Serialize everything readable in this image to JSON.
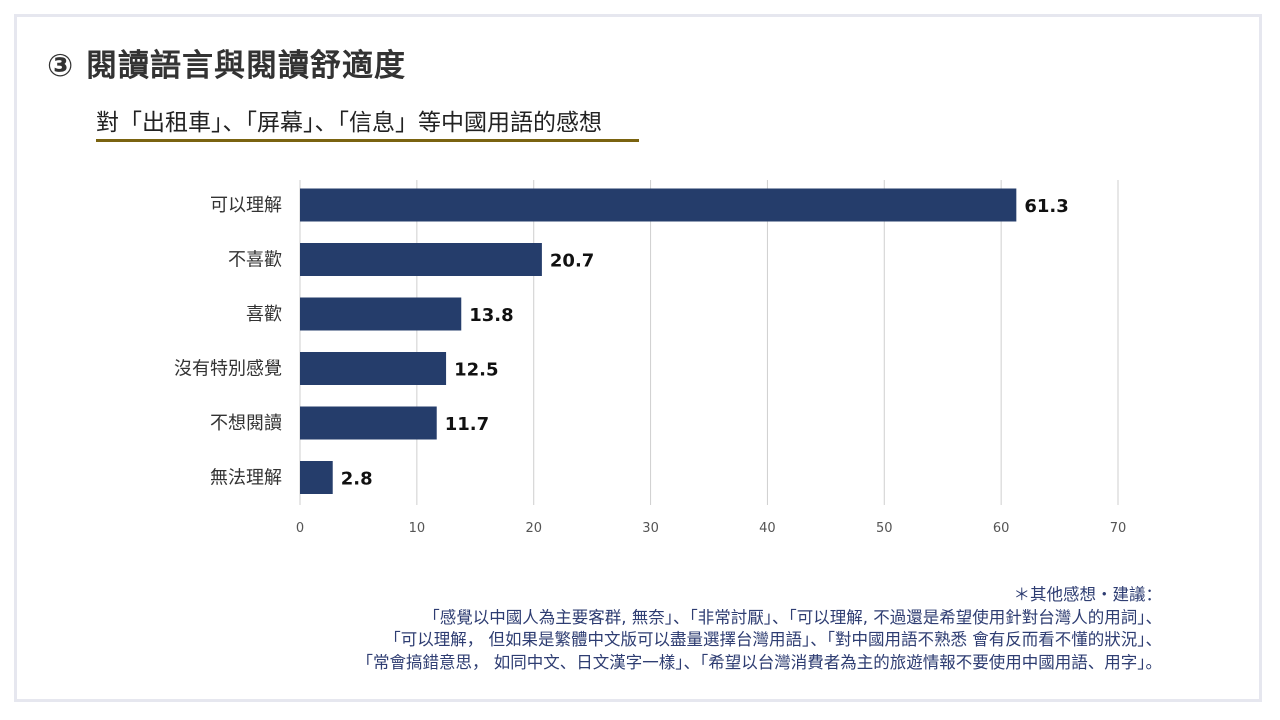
{
  "header": {
    "title": "③ 閱讀語言與閱讀舒適度",
    "subtitle": "對「出租車」、「屏幕」、「信息」等中國用語的感想"
  },
  "chart_data": {
    "type": "bar",
    "orientation": "horizontal",
    "categories": [
      "可以理解",
      "不喜歡",
      "喜歡",
      "沒有特別感覺",
      "不想閱讀",
      "無法理解"
    ],
    "values": [
      61.3,
      20.7,
      13.8,
      12.5,
      11.7,
      2.8
    ],
    "value_labels": [
      "61.3",
      "20.7",
      "13.8",
      "12.5",
      "11.7",
      "2.8"
    ],
    "xlim": [
      0,
      70
    ],
    "x_ticks": [
      0,
      10,
      20,
      30,
      40,
      50,
      60,
      70
    ],
    "grid": true,
    "bar_color": "#253d6b",
    "grid_color": "#cfcfcf"
  },
  "notes": {
    "heading": "＊其他感想・建議：",
    "lines": [
      "「感覺以中國人為主要客群, 無奈」、「非常討厭」、「可以理解, 不過還是希望使用針對台灣人的用詞」、",
      "「可以理解， 但如果是繁體中文版可以盡量選擇台灣用語」、「對中國用語不熟悉 會有反而看不懂的狀況」、",
      "「常會搞錯意思， 如同中文、日文漢字一樣」、「希望以台灣消費者為主的旅遊情報不要使用中國用語、用字」。"
    ]
  },
  "colors": {
    "title_text": "#333333",
    "subtitle_rule": "#7a6310",
    "notes_text": "#2e3d72",
    "frame_border": "#e6e7ef"
  }
}
